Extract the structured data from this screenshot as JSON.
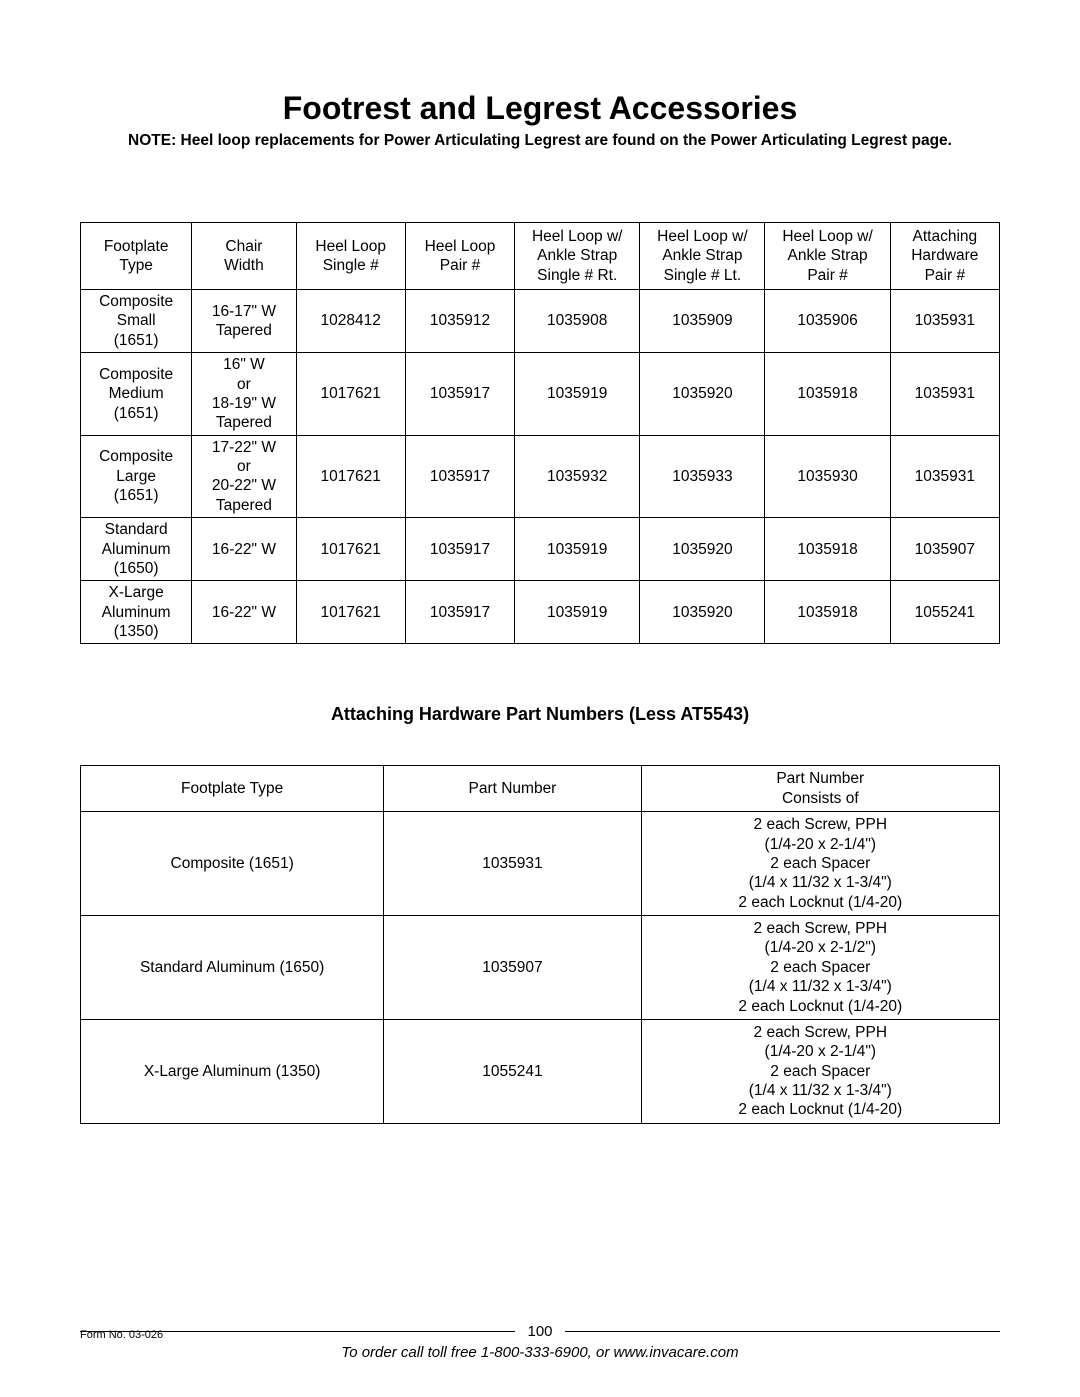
{
  "title": "Footrest and Legrest Accessories",
  "note": "NOTE: Heel loop replacements for Power Articulating Legrest are found on the Power Articulating Legrest page.",
  "table1": {
    "headers": [
      "Footplate\nType",
      "Chair\nWidth",
      "Heel Loop\nSingle #",
      "Heel Loop\nPair #",
      "Heel Loop w/\nAnkle Strap\nSingle # Rt.",
      "Heel Loop w/\nAnkle Strap\nSingle # Lt.",
      "Heel Loop w/\nAnkle Strap\nPair #",
      "Attaching\nHardware\nPair #"
    ],
    "rows": [
      [
        "Composite\nSmall\n(1651)",
        "16-17\" W\nTapered",
        "1028412",
        "1035912",
        "1035908",
        "1035909",
        "1035906",
        "1035931"
      ],
      [
        "Composite\nMedium\n(1651)",
        "16\" W\nor\n18-19\" W\nTapered",
        "1017621",
        "1035917",
        "1035919",
        "1035920",
        "1035918",
        "1035931"
      ],
      [
        "Composite\nLarge\n(1651)",
        "17-22\" W\nor\n20-22\" W\nTapered",
        "1017621",
        "1035917",
        "1035932",
        "1035933",
        "1035930",
        "1035931"
      ],
      [
        "Standard\nAluminum\n(1650)",
        "16-22\" W",
        "1017621",
        "1035917",
        "1035919",
        "1035920",
        "1035918",
        "1035907"
      ],
      [
        "X-Large\nAluminum\n(1350)",
        "16-22\" W",
        "1017621",
        "1035917",
        "1035919",
        "1035920",
        "1035918",
        "1055241"
      ]
    ]
  },
  "section_title": "Attaching Hardware Part Numbers (Less AT5543)",
  "table2": {
    "headers": [
      "Footplate Type",
      "Part Number",
      "Part Number\nConsists of"
    ],
    "rows": [
      [
        "Composite (1651)",
        "1035931",
        "2 each Screw, PPH\n(1/4-20 x 2-1/4\")\n2 each Spacer\n(1/4 x 11/32 x 1-3/4\")\n2 each Locknut (1/4-20)"
      ],
      [
        "Standard Aluminum (1650)",
        "1035907",
        "2 each Screw, PPH\n(1/4-20 x 2-1/2\")\n2 each Spacer\n(1/4 x 11/32 x 1-3/4\")\n2 each Locknut (1/4-20)"
      ],
      [
        "X-Large Aluminum (1350)",
        "1055241",
        "2 each Screw, PPH\n(1/4-20 x 2-1/4\")\n2 each Spacer\n(1/4 x 11/32 x 1-3/4\")\n2 each Locknut (1/4-20)"
      ]
    ]
  },
  "footer": {
    "page_number": "100",
    "form_no": "Form No. 03-026",
    "order_line": "To order call toll free 1-800-333-6900, or www.invacare.com"
  },
  "colors": {
    "background": "#ffffff",
    "text": "#000000",
    "border": "#000000"
  },
  "fonts": {
    "family": "Arial",
    "title_size_pt": 24,
    "body_size_pt": 11.5,
    "section_title_size_pt": 13.5
  }
}
